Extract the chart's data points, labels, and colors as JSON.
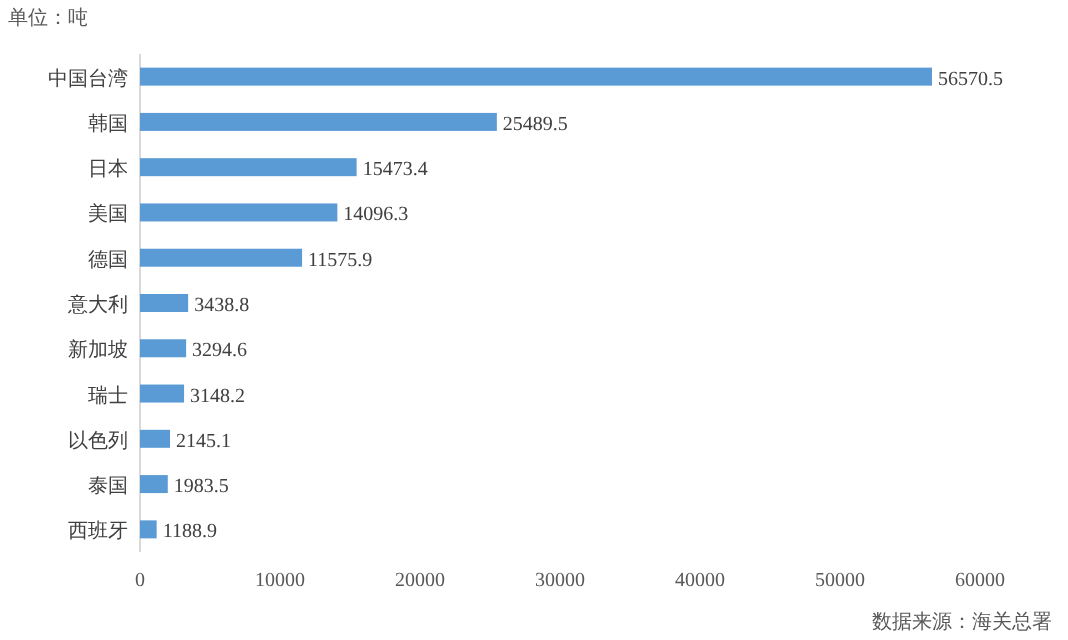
{
  "chart_data": {
    "type": "bar",
    "orientation": "horizontal",
    "title": "单位：吨",
    "categories": [
      "中国台湾",
      "韩国",
      "日本",
      "美国",
      "德国",
      "意大利",
      "新加坡",
      "瑞士",
      "以色列",
      "泰国",
      "西班牙"
    ],
    "values": [
      56570.5,
      25489.5,
      15473.4,
      14096.3,
      11575.9,
      3438.8,
      3294.6,
      3148.2,
      2145.1,
      1983.5,
      1188.9
    ],
    "color": "#5b9bd5",
    "data_labels": true,
    "xlim": [
      0,
      60000
    ],
    "xticks": [
      0,
      10000,
      20000,
      30000,
      40000,
      50000,
      60000
    ],
    "annotations": [
      "数据来源：海关总署"
    ]
  }
}
